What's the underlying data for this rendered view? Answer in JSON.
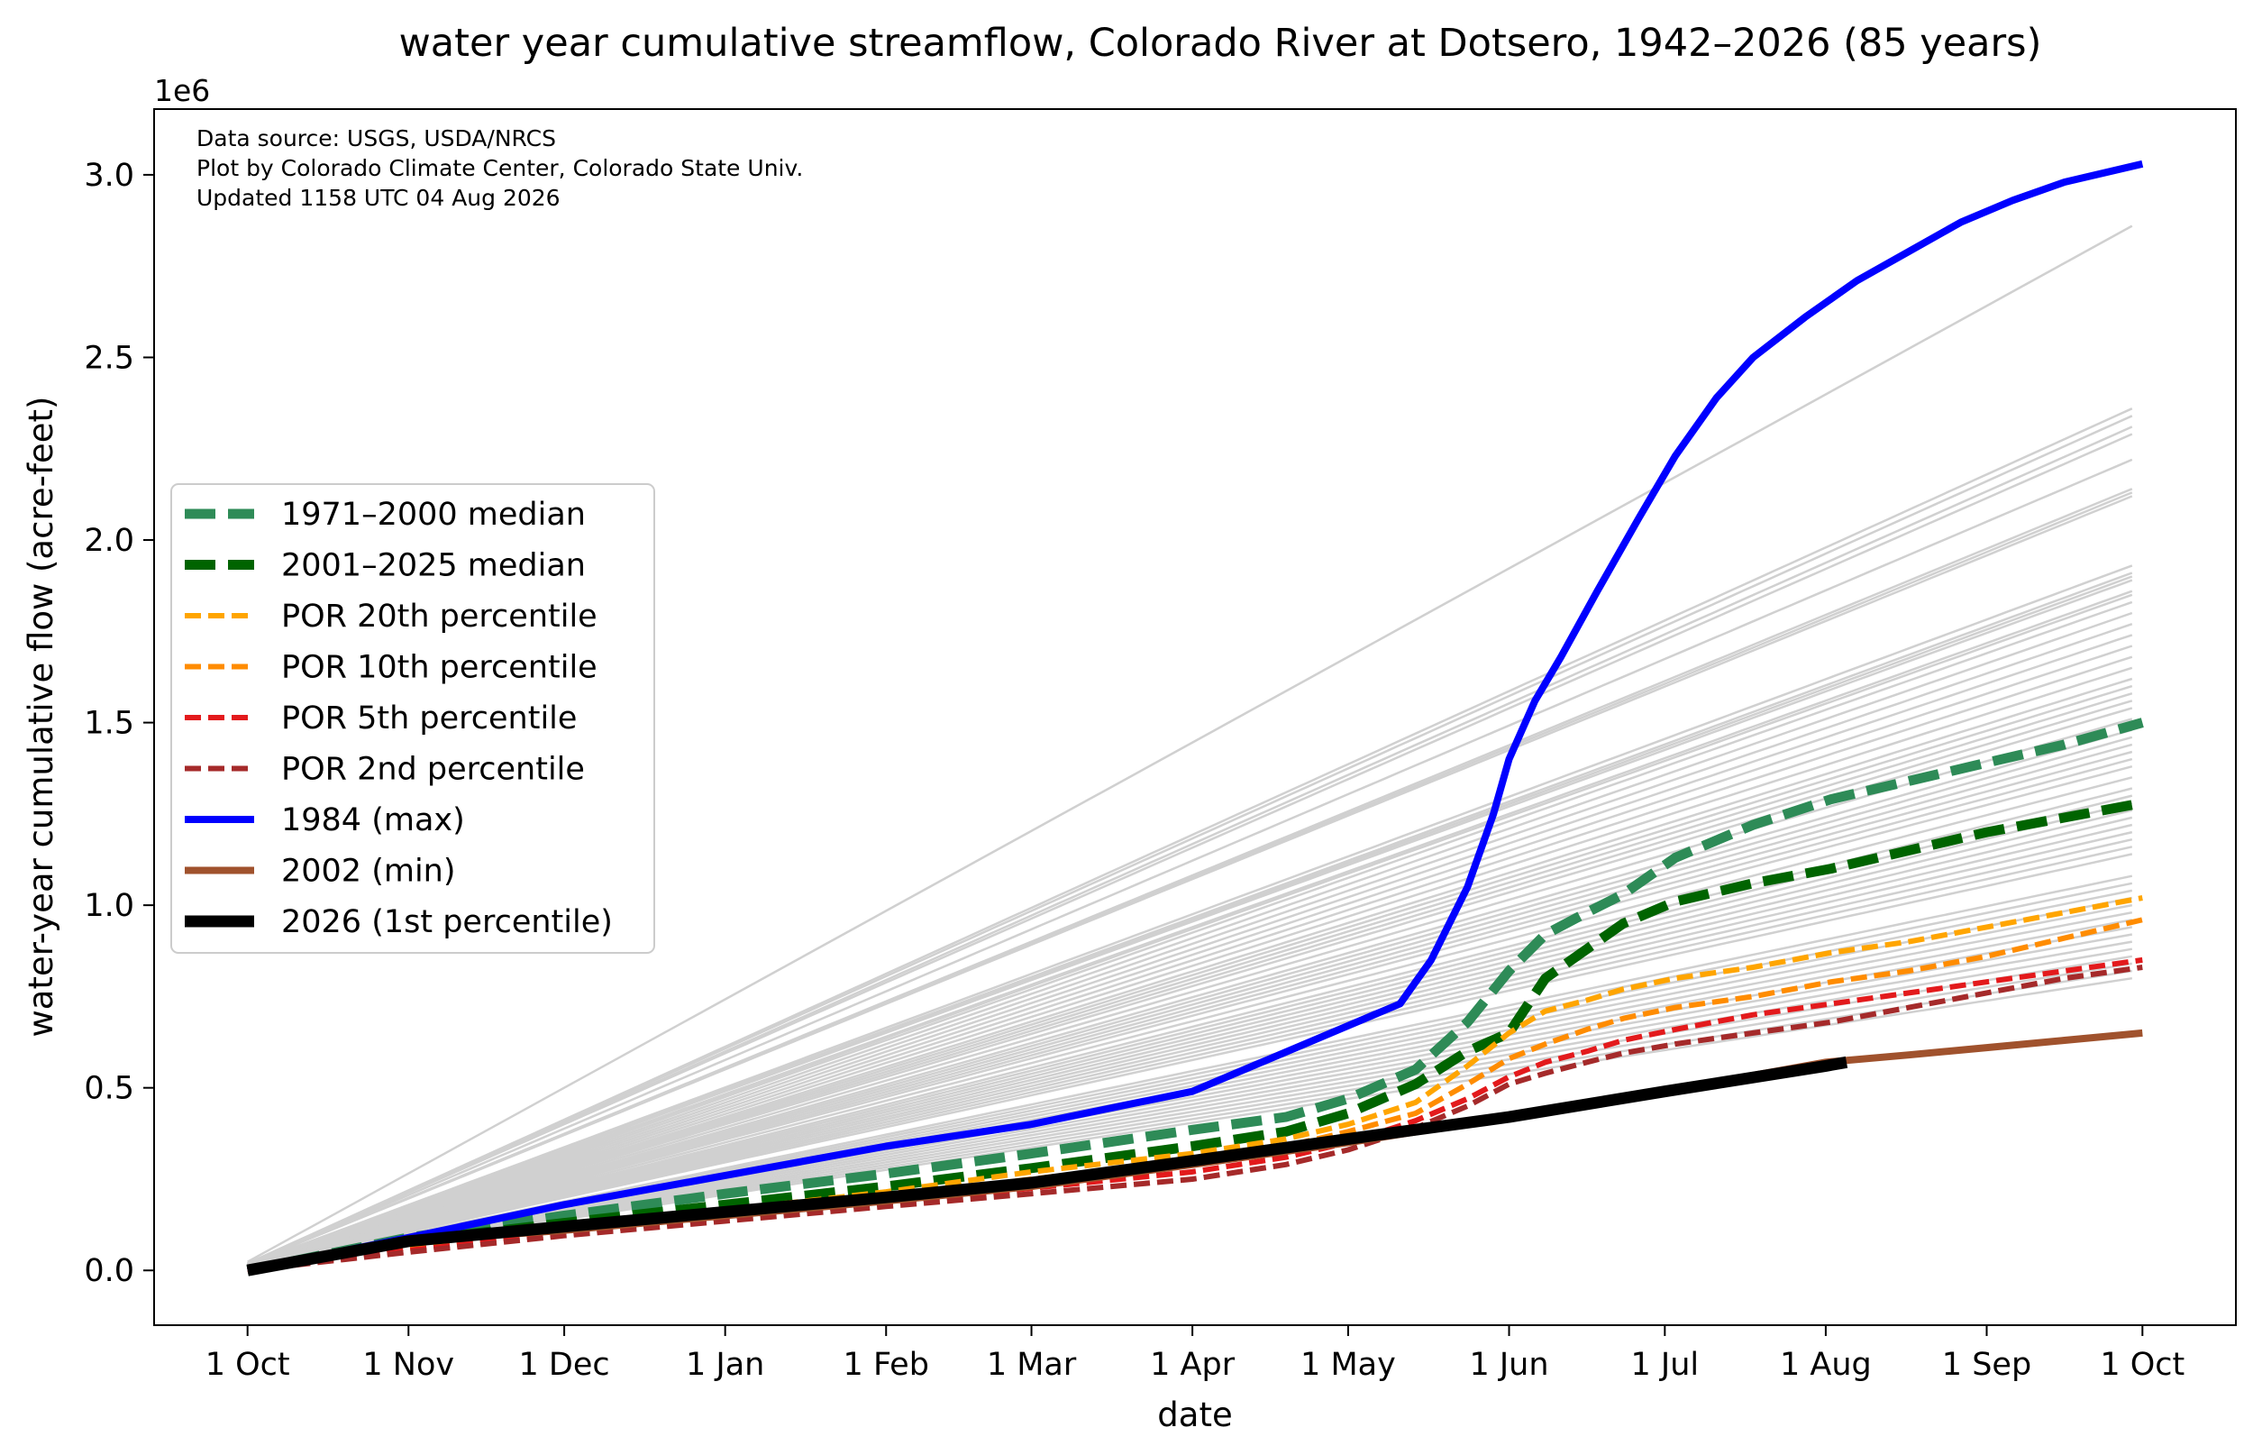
{
  "chart_data": {
    "type": "line",
    "title": "water year cumulative streamflow, Colorado River at Dotsero, 1942–2026 (85 years)",
    "xlabel": "date",
    "ylabel": "water-year cumulative flow (acre-feet)",
    "y_multiplier_label": "1e6",
    "annotation_lines": [
      "Data source: USGS, USDA/NRCS",
      "Plot by Colorado Climate Center, Colorado State Univ.",
      "Updated 1158 UTC 04 Aug 2026"
    ],
    "x_ticks": [
      {
        "label": "1 Oct",
        "day": 0
      },
      {
        "label": "1 Nov",
        "day": 31
      },
      {
        "label": "1 Dec",
        "day": 61
      },
      {
        "label": "1 Jan",
        "day": 92
      },
      {
        "label": "1 Feb",
        "day": 123
      },
      {
        "label": "1 Mar",
        "day": 151
      },
      {
        "label": "1 Apr",
        "day": 182
      },
      {
        "label": "1 May",
        "day": 212
      },
      {
        "label": "1 Jun",
        "day": 243
      },
      {
        "label": "1 Jul",
        "day": 273
      },
      {
        "label": "1 Aug",
        "day": 304
      },
      {
        "label": "1 Sep",
        "day": 335
      },
      {
        "label": "1 Oct",
        "day": 365
      }
    ],
    "xlim": [
      -18,
      383
    ],
    "y_ticks": [
      {
        "label": "0.0",
        "value": 0
      },
      {
        "label": "0.5",
        "value": 500000
      },
      {
        "label": "1.0",
        "value": 1000000
      },
      {
        "label": "1.5",
        "value": 1500000
      },
      {
        "label": "2.0",
        "value": 2000000
      },
      {
        "label": "2.5",
        "value": 2500000
      },
      {
        "label": "3.0",
        "value": 3000000
      }
    ],
    "ylim": [
      -150000,
      3180000
    ],
    "legend_position": "center-left",
    "background_years": {
      "color": "#d0d0d0",
      "end_values": [
        2860000,
        2360000,
        2340000,
        2310000,
        2290000,
        2220000,
        2140000,
        2130000,
        2120000,
        1930000,
        1910000,
        1900000,
        1890000,
        1860000,
        1850000,
        1830000,
        1800000,
        1770000,
        1740000,
        1710000,
        1680000,
        1650000,
        1620000,
        1600000,
        1580000,
        1560000,
        1540000,
        1510000,
        1480000,
        1460000,
        1440000,
        1420000,
        1400000,
        1380000,
        1350000,
        1320000,
        1300000,
        1280000,
        1260000,
        1240000,
        1220000,
        1200000,
        1180000,
        1160000,
        1140000,
        1080000,
        1060000,
        1040000,
        1020000,
        1000000,
        980000,
        960000,
        940000,
        920000,
        900000,
        880000,
        860000,
        840000,
        820000,
        800000
      ],
      "peak_days": [
        262,
        255,
        252,
        268,
        258,
        250,
        265,
        270,
        272,
        260,
        256,
        264,
        268,
        262,
        258,
        266,
        270,
        254,
        262,
        272,
        260,
        266,
        256,
        270,
        262,
        258,
        268,
        264,
        260,
        254,
        272,
        262,
        266,
        258,
        270,
        256,
        262,
        268,
        264,
        260,
        258,
        270,
        266,
        254,
        262,
        260,
        266,
        256,
        270,
        262,
        258,
        268,
        264,
        260,
        254,
        272,
        262,
        266,
        258,
        270
      ]
    },
    "series": [
      {
        "name": "1971–2000 median",
        "color": "#2e8b57",
        "width": 11,
        "dash": "34 14",
        "x": [
          0,
          31,
          61,
          92,
          123,
          151,
          182,
          200,
          212,
          225,
          235,
          243,
          250,
          258,
          265,
          275,
          290,
          305,
          320,
          335,
          350,
          365
        ],
        "y": [
          0,
          90000,
          150000,
          210000,
          265000,
          320000,
          385000,
          420000,
          470000,
          550000,
          680000,
          820000,
          920000,
          980000,
          1030000,
          1130000,
          1220000,
          1290000,
          1340000,
          1390000,
          1440000,
          1500000
        ]
      },
      {
        "name": "2001–2025 median",
        "color": "#006400",
        "width": 11,
        "dash": "34 14",
        "x": [
          0,
          31,
          61,
          92,
          123,
          151,
          182,
          200,
          212,
          225,
          235,
          243,
          250,
          258,
          265,
          275,
          290,
          305,
          320,
          335,
          350,
          365
        ],
        "y": [
          0,
          80000,
          130000,
          180000,
          230000,
          280000,
          340000,
          380000,
          430000,
          510000,
          600000,
          650000,
          800000,
          880000,
          950000,
          1010000,
          1060000,
          1100000,
          1150000,
          1200000,
          1240000,
          1280000
        ]
      },
      {
        "name": "POR 20th percentile",
        "color": "#ffa500",
        "width": 6,
        "dash": "18 8",
        "x": [
          0,
          31,
          61,
          92,
          123,
          151,
          182,
          200,
          212,
          225,
          235,
          243,
          250,
          258,
          265,
          275,
          290,
          305,
          320,
          335,
          350,
          365
        ],
        "y": [
          0,
          70000,
          120000,
          165000,
          215000,
          270000,
          320000,
          360000,
          400000,
          460000,
          560000,
          650000,
          710000,
          740000,
          770000,
          800000,
          830000,
          870000,
          900000,
          940000,
          980000,
          1020000
        ]
      },
      {
        "name": "POR 10th percentile",
        "color": "#ff8c00",
        "width": 6,
        "dash": "18 8",
        "x": [
          0,
          31,
          61,
          92,
          123,
          151,
          182,
          200,
          212,
          225,
          235,
          243,
          250,
          258,
          265,
          275,
          290,
          305,
          320,
          335,
          350,
          365
        ],
        "y": [
          0,
          60000,
          110000,
          155000,
          200000,
          250000,
          300000,
          340000,
          380000,
          430000,
          510000,
          580000,
          620000,
          660000,
          690000,
          720000,
          750000,
          790000,
          820000,
          860000,
          910000,
          960000
        ]
      },
      {
        "name": "POR 5th percentile",
        "color": "#e31a1c",
        "width": 6,
        "dash": "18 8",
        "x": [
          0,
          31,
          61,
          92,
          123,
          151,
          182,
          200,
          212,
          225,
          235,
          243,
          250,
          258,
          265,
          275,
          290,
          305,
          320,
          335,
          350,
          365
        ],
        "y": [
          0,
          55000,
          100000,
          145000,
          185000,
          225000,
          270000,
          310000,
          350000,
          410000,
          470000,
          530000,
          570000,
          600000,
          630000,
          660000,
          700000,
          730000,
          760000,
          790000,
          820000,
          850000
        ]
      },
      {
        "name": "POR 2nd percentile",
        "color": "#a52a2a",
        "width": 6,
        "dash": "18 8",
        "x": [
          0,
          31,
          61,
          92,
          123,
          151,
          182,
          200,
          212,
          225,
          235,
          243,
          250,
          258,
          265,
          275,
          290,
          305,
          320,
          335,
          350,
          365
        ],
        "y": [
          0,
          50000,
          95000,
          135000,
          175000,
          210000,
          250000,
          290000,
          330000,
          390000,
          450000,
          510000,
          540000,
          570000,
          595000,
          620000,
          650000,
          680000,
          720000,
          760000,
          800000,
          830000
        ]
      },
      {
        "name": "1984 (max)",
        "color": "#0000ff",
        "width": 8,
        "dash": "",
        "x": [
          0,
          31,
          61,
          92,
          123,
          151,
          182,
          197,
          212,
          222,
          228,
          235,
          240,
          243,
          248,
          253,
          260,
          268,
          275,
          283,
          290,
          300,
          310,
          320,
          330,
          340,
          350,
          365
        ],
        "y": [
          0,
          90000,
          180000,
          260000,
          340000,
          400000,
          490000,
          580000,
          670000,
          730000,
          850000,
          1050000,
          1250000,
          1400000,
          1560000,
          1680000,
          1860000,
          2060000,
          2230000,
          2390000,
          2500000,
          2610000,
          2710000,
          2790000,
          2870000,
          2930000,
          2980000,
          3030000
        ]
      },
      {
        "name": "2002 (min)",
        "color": "#a0522d",
        "width": 8,
        "dash": "",
        "x": [
          0,
          31,
          61,
          92,
          123,
          151,
          182,
          212,
          243,
          273,
          304,
          320,
          335,
          350,
          365
        ],
        "y": [
          0,
          80000,
          110000,
          150000,
          190000,
          230000,
          290000,
          350000,
          420000,
          490000,
          570000,
          590000,
          610000,
          630000,
          650000
        ]
      },
      {
        "name": "2026 (1st percentile)",
        "color": "#000000",
        "width": 13,
        "dash": "",
        "x": [
          0,
          31,
          61,
          92,
          123,
          151,
          182,
          212,
          243,
          273,
          304,
          308
        ],
        "y": [
          0,
          80000,
          120000,
          160000,
          200000,
          240000,
          300000,
          360000,
          420000,
          490000,
          560000,
          570000
        ]
      }
    ]
  }
}
